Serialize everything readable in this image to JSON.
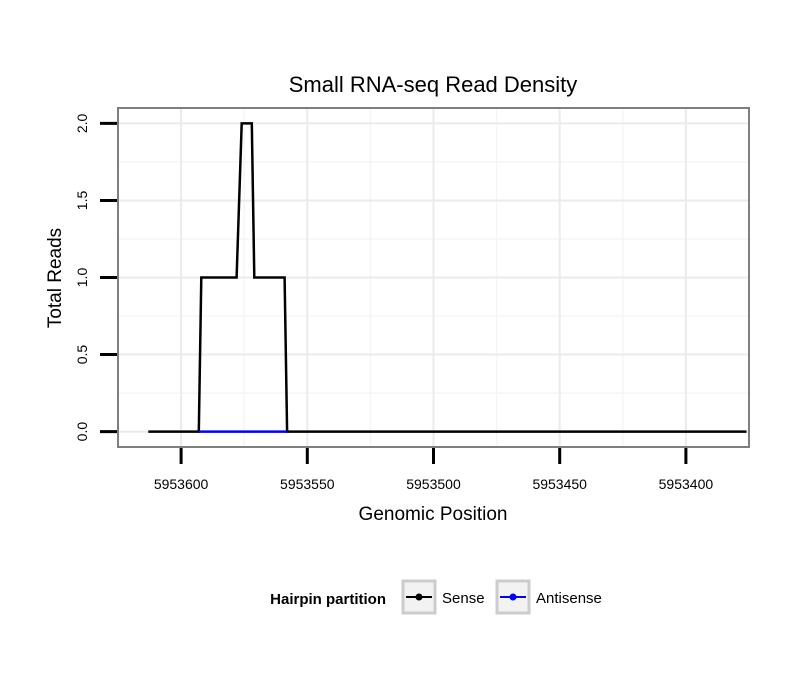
{
  "chart_data": {
    "type": "line",
    "title": "Small RNA-seq Read Density",
    "xlabel": "Genomic Position",
    "ylabel": "Total Reads",
    "x_reversed": true,
    "xlim": [
      5953625,
      5953375
    ],
    "ylim": [
      -0.1,
      2.1
    ],
    "grid": true,
    "x_ticks": [
      5953600,
      5953550,
      5953500,
      5953450,
      5953400
    ],
    "x_tick_labels": [
      "5953600",
      "5953550",
      "5953500",
      "5953450",
      "5953400"
    ],
    "y_ticks": [
      0.0,
      0.5,
      1.0,
      1.5,
      2.0
    ],
    "y_tick_labels": [
      "0.0",
      "0.5",
      "1.0",
      "1.5",
      "2.0"
    ],
    "legend": {
      "title": "Hairpin partition",
      "position": "bottom",
      "entries": [
        {
          "label": "Sense",
          "color": "#000000"
        },
        {
          "label": "Antisense",
          "color": "#0000ff"
        }
      ]
    },
    "series": [
      {
        "name": "Sense",
        "color": "#000000",
        "x": [
          5953613,
          5953593,
          5953592,
          5953578,
          5953576,
          5953572,
          5953571,
          5953559,
          5953558,
          5953376
        ],
        "y": [
          0,
          0,
          1,
          1,
          2,
          2,
          1,
          1,
          0,
          0
        ]
      },
      {
        "name": "Antisense",
        "color": "#0000ff",
        "x": [
          5953593,
          5953558
        ],
        "y": [
          0,
          0
        ]
      }
    ]
  }
}
